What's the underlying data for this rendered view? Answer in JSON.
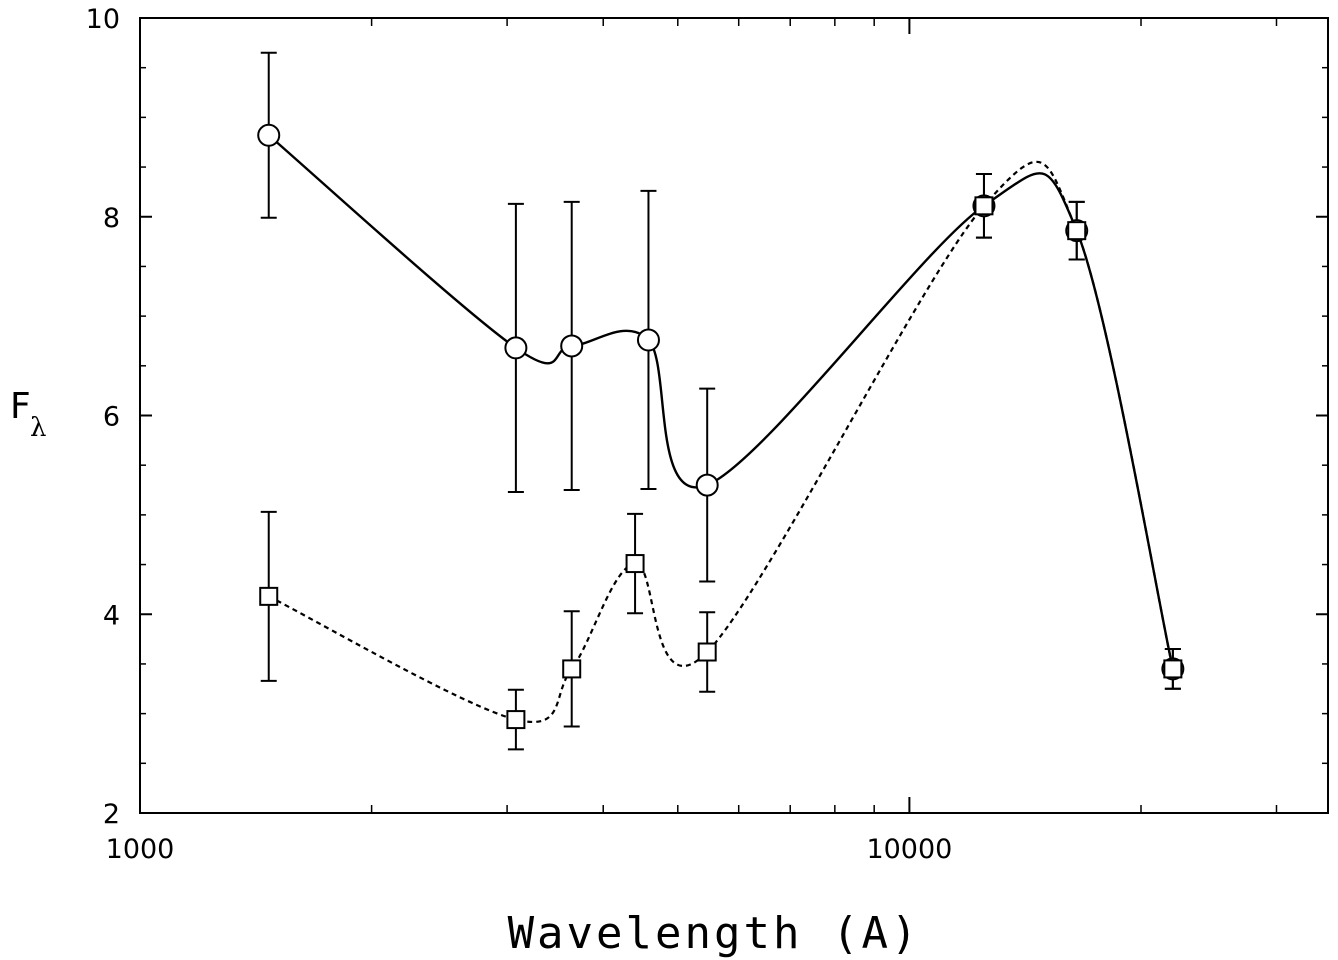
{
  "chart_data": {
    "type": "scatter",
    "x_scale": "log",
    "xlim": [
      1000,
      35000
    ],
    "ylim": [
      2,
      10
    ],
    "xlabel": "Wavelength (A)",
    "ylabel": "F",
    "ylabel_subscript": "λ",
    "x_ticks": [
      1000,
      10000
    ],
    "y_ticks": [
      2,
      4,
      6,
      8,
      10
    ],
    "grid": false,
    "series": [
      {
        "marker": "circle",
        "line": "solid",
        "x": [
          1470,
          3080,
          3640,
          4580,
          5460,
          12500,
          16500,
          22000
        ],
        "y": [
          8.82,
          6.68,
          6.7,
          6.76,
          5.3,
          8.11,
          7.86,
          3.45
        ],
        "yerr": [
          0.83,
          1.45,
          1.45,
          1.5,
          0.97,
          0.32,
          0.29,
          0.2
        ]
      },
      {
        "marker": "square",
        "line": "dotted",
        "x": [
          1470,
          3080,
          3640,
          4400,
          5460,
          12500,
          16500,
          22000
        ],
        "y": [
          4.18,
          2.94,
          3.45,
          4.51,
          3.62,
          8.11,
          7.86,
          3.45
        ],
        "yerr": [
          0.85,
          0.3,
          0.58,
          0.5,
          0.4,
          0.32,
          0.29,
          0.2
        ]
      }
    ]
  }
}
